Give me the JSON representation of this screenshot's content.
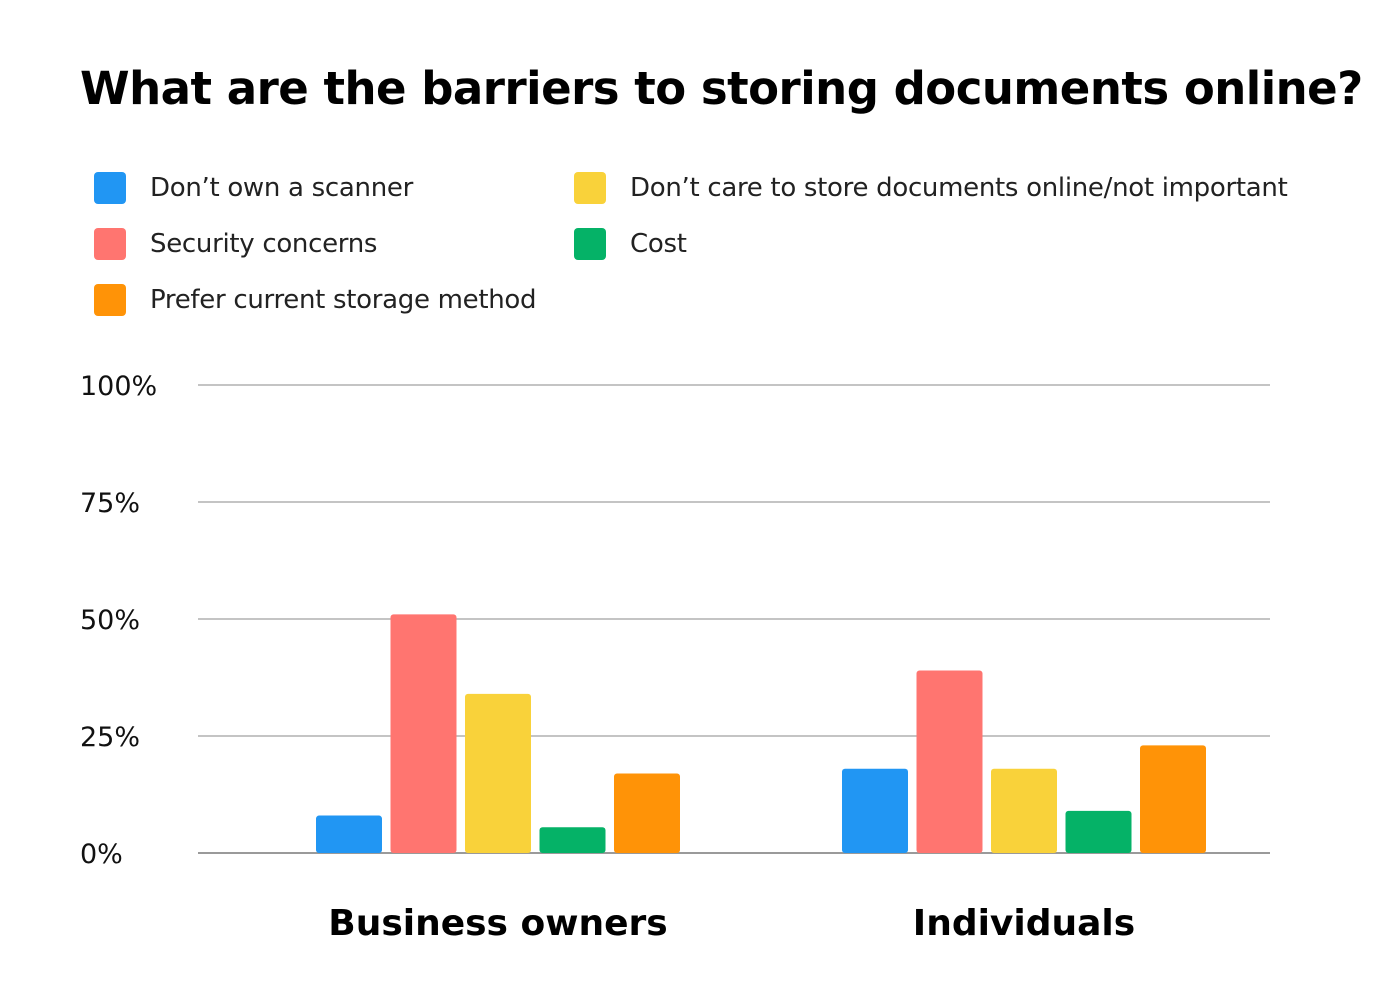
{
  "chart_data": {
    "type": "bar",
    "title": "What are the barriers to storing documents online?",
    "categories": [
      "Business owners",
      "Individuals"
    ],
    "series": [
      {
        "name": "Don’t  own a scanner",
        "color": "#2196F3",
        "values": [
          8,
          18
        ]
      },
      {
        "name": "Security concerns",
        "color": "#FF7570",
        "values": [
          51,
          39
        ]
      },
      {
        "name": "Don’t care to store documents online/not important",
        "color": "#F9D23A",
        "values": [
          34,
          18
        ]
      },
      {
        "name": "Cost",
        "color": "#05B267",
        "values": [
          5.5,
          9
        ]
      },
      {
        "name": "Prefer current storage method",
        "color": "#FF9307",
        "values": [
          17,
          23
        ]
      }
    ],
    "y_ticks": [
      "0%",
      "25%",
      "50%",
      "75%",
      "100%"
    ],
    "ylim": [
      0,
      100
    ],
    "grid": true,
    "legend_position": "top",
    "xlabel": "",
    "ylabel": ""
  }
}
